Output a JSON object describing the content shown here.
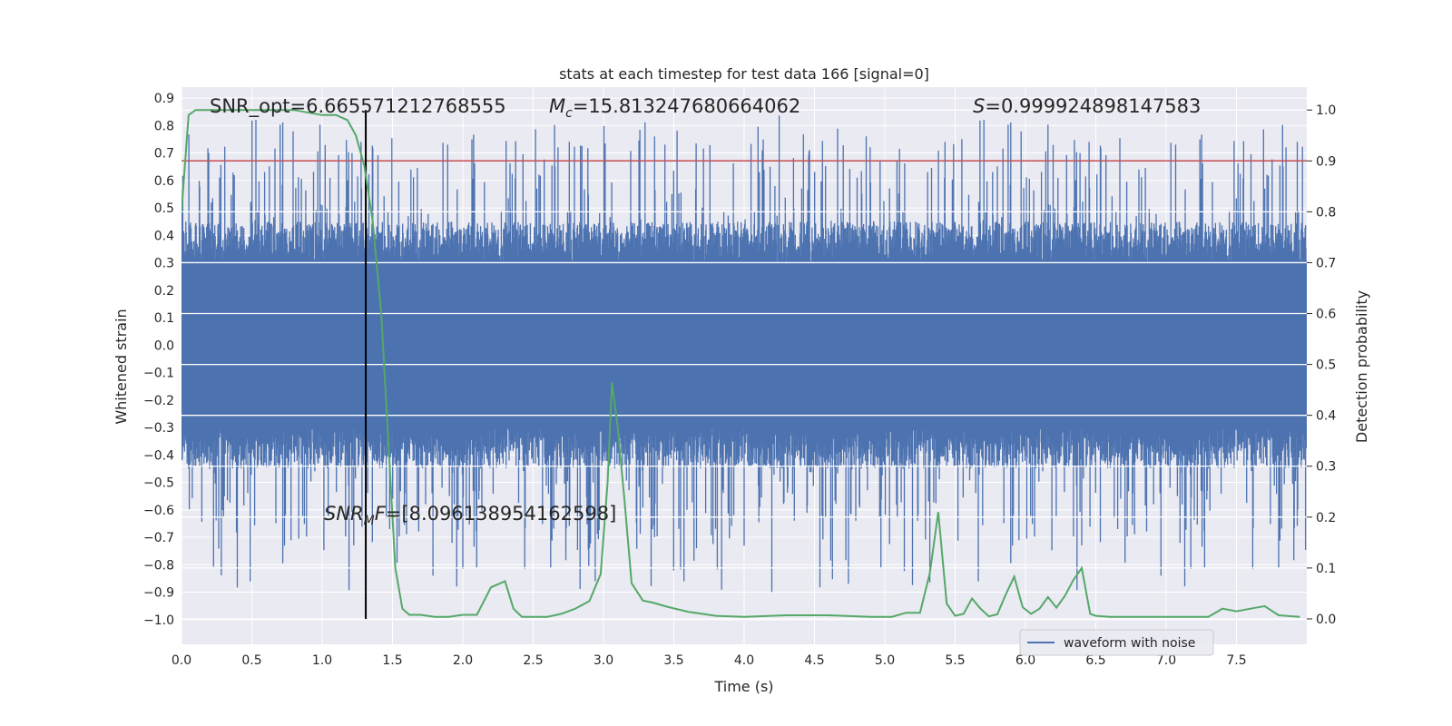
{
  "chart_data": {
    "type": "line",
    "title": "stats at each timestep for test data 166 [signal=0]",
    "xlabel": "Time (s)",
    "ylabel_left": "Whitened strain",
    "ylabel_right": "Detection probability",
    "xlim": [
      0.0,
      8.0
    ],
    "ylim_left": [
      -1.09,
      0.94
    ],
    "ylim_right": [
      -0.05,
      1.045
    ],
    "x_ticks": [
      "0.0",
      "0.5",
      "1.0",
      "1.5",
      "2.0",
      "2.5",
      "3.0",
      "3.5",
      "4.0",
      "4.5",
      "5.0",
      "5.5",
      "6.0",
      "6.5",
      "7.0",
      "7.5"
    ],
    "x_tick_values": [
      0.0,
      0.5,
      1.0,
      1.5,
      2.0,
      2.5,
      3.0,
      3.5,
      4.0,
      4.5,
      5.0,
      5.5,
      6.0,
      6.5,
      7.0,
      7.5
    ],
    "y_ticks_left": [
      "0.9",
      "0.8",
      "0.7",
      "0.6",
      "0.5",
      "0.4",
      "0.3",
      "0.2",
      "0.1",
      "0.0",
      "−0.1",
      "−0.2",
      "−0.3",
      "−0.4",
      "−0.5",
      "−0.6",
      "−0.7",
      "−0.8",
      "−0.9",
      "−1.0"
    ],
    "y_tick_values_left": [
      0.9,
      0.8,
      0.7,
      0.6,
      0.5,
      0.4,
      0.3,
      0.2,
      0.1,
      0.0,
      -0.1,
      -0.2,
      -0.3,
      -0.4,
      -0.5,
      -0.6,
      -0.7,
      -0.8,
      -0.9,
      -1.0
    ],
    "y_ticks_right": [
      "1.0",
      "0.9",
      "0.8",
      "0.7",
      "0.6",
      "0.5",
      "0.4",
      "0.3",
      "0.2",
      "0.1",
      "0.0"
    ],
    "y_tick_values_right": [
      1.0,
      0.9,
      0.8,
      0.7,
      0.6,
      0.5,
      0.4,
      0.3,
      0.2,
      0.1,
      0.0
    ],
    "threshold": 0.9,
    "marker_time": 1.31,
    "annotations": {
      "snr_opt": "SNR_opt=6.665571212768555",
      "mc_symbol": "M",
      "mc_sub": "c",
      "mc_value": "=15.813247680664062",
      "s_symbol": "S",
      "s_value": "=0.999924898147583",
      "snrmf_symbol": "SNR",
      "snrmf_sub": "M",
      "snrmf_f": "F",
      "snrmf_value": "=[8.096138954162598]"
    },
    "legend": [
      "waveform with noise"
    ],
    "colors": {
      "waveform": "#4c72b0",
      "probability": "#55a868",
      "threshold": "#c44e52",
      "marker": "#000000",
      "background": "#eaeaf2",
      "grid": "#ffffff"
    },
    "series": [
      {
        "name": "waveform with noise",
        "envelope": "noise band approx ±0.45 with spikes up to 0.85 and down to -0.99"
      },
      {
        "name": "detection probability",
        "x": [
          0.0,
          0.05,
          0.1,
          0.2,
          0.4,
          0.6,
          0.8,
          1.0,
          1.1,
          1.18,
          1.24,
          1.3,
          1.36,
          1.42,
          1.47,
          1.52,
          1.57,
          1.62,
          1.7,
          1.8,
          1.9,
          2.0,
          2.1,
          2.2,
          2.3,
          2.36,
          2.42,
          2.5,
          2.6,
          2.7,
          2.8,
          2.9,
          2.98,
          3.03,
          3.06,
          3.1,
          3.15,
          3.2,
          3.28,
          3.35,
          3.45,
          3.6,
          3.8,
          4.0,
          4.3,
          4.6,
          4.9,
          5.05,
          5.15,
          5.25,
          5.32,
          5.38,
          5.44,
          5.5,
          5.56,
          5.62,
          5.68,
          5.74,
          5.8,
          5.86,
          5.92,
          5.98,
          6.04,
          6.1,
          6.16,
          6.22,
          6.28,
          6.34,
          6.4,
          6.46,
          6.5,
          6.6,
          6.8,
          7.0,
          7.2,
          7.3,
          7.4,
          7.5,
          7.6,
          7.7,
          7.8,
          7.95
        ],
        "values": [
          0.8,
          0.99,
          1.0,
          1.0,
          1.0,
          1.0,
          1.0,
          0.99,
          0.99,
          0.98,
          0.95,
          0.89,
          0.78,
          0.6,
          0.35,
          0.1,
          0.02,
          0.008,
          0.008,
          0.004,
          0.004,
          0.008,
          0.008,
          0.062,
          0.074,
          0.02,
          0.004,
          0.004,
          0.004,
          0.01,
          0.02,
          0.035,
          0.088,
          0.27,
          0.465,
          0.38,
          0.23,
          0.07,
          0.036,
          0.032,
          0.024,
          0.014,
          0.006,
          0.004,
          0.007,
          0.007,
          0.004,
          0.004,
          0.012,
          0.012,
          0.09,
          0.21,
          0.03,
          0.006,
          0.01,
          0.04,
          0.02,
          0.005,
          0.009,
          0.048,
          0.083,
          0.023,
          0.01,
          0.02,
          0.043,
          0.022,
          0.045,
          0.076,
          0.1,
          0.01,
          0.006,
          0.004,
          0.004,
          0.004,
          0.004,
          0.004,
          0.02,
          0.015,
          0.02,
          0.025,
          0.007,
          0.004
        ]
      }
    ]
  }
}
